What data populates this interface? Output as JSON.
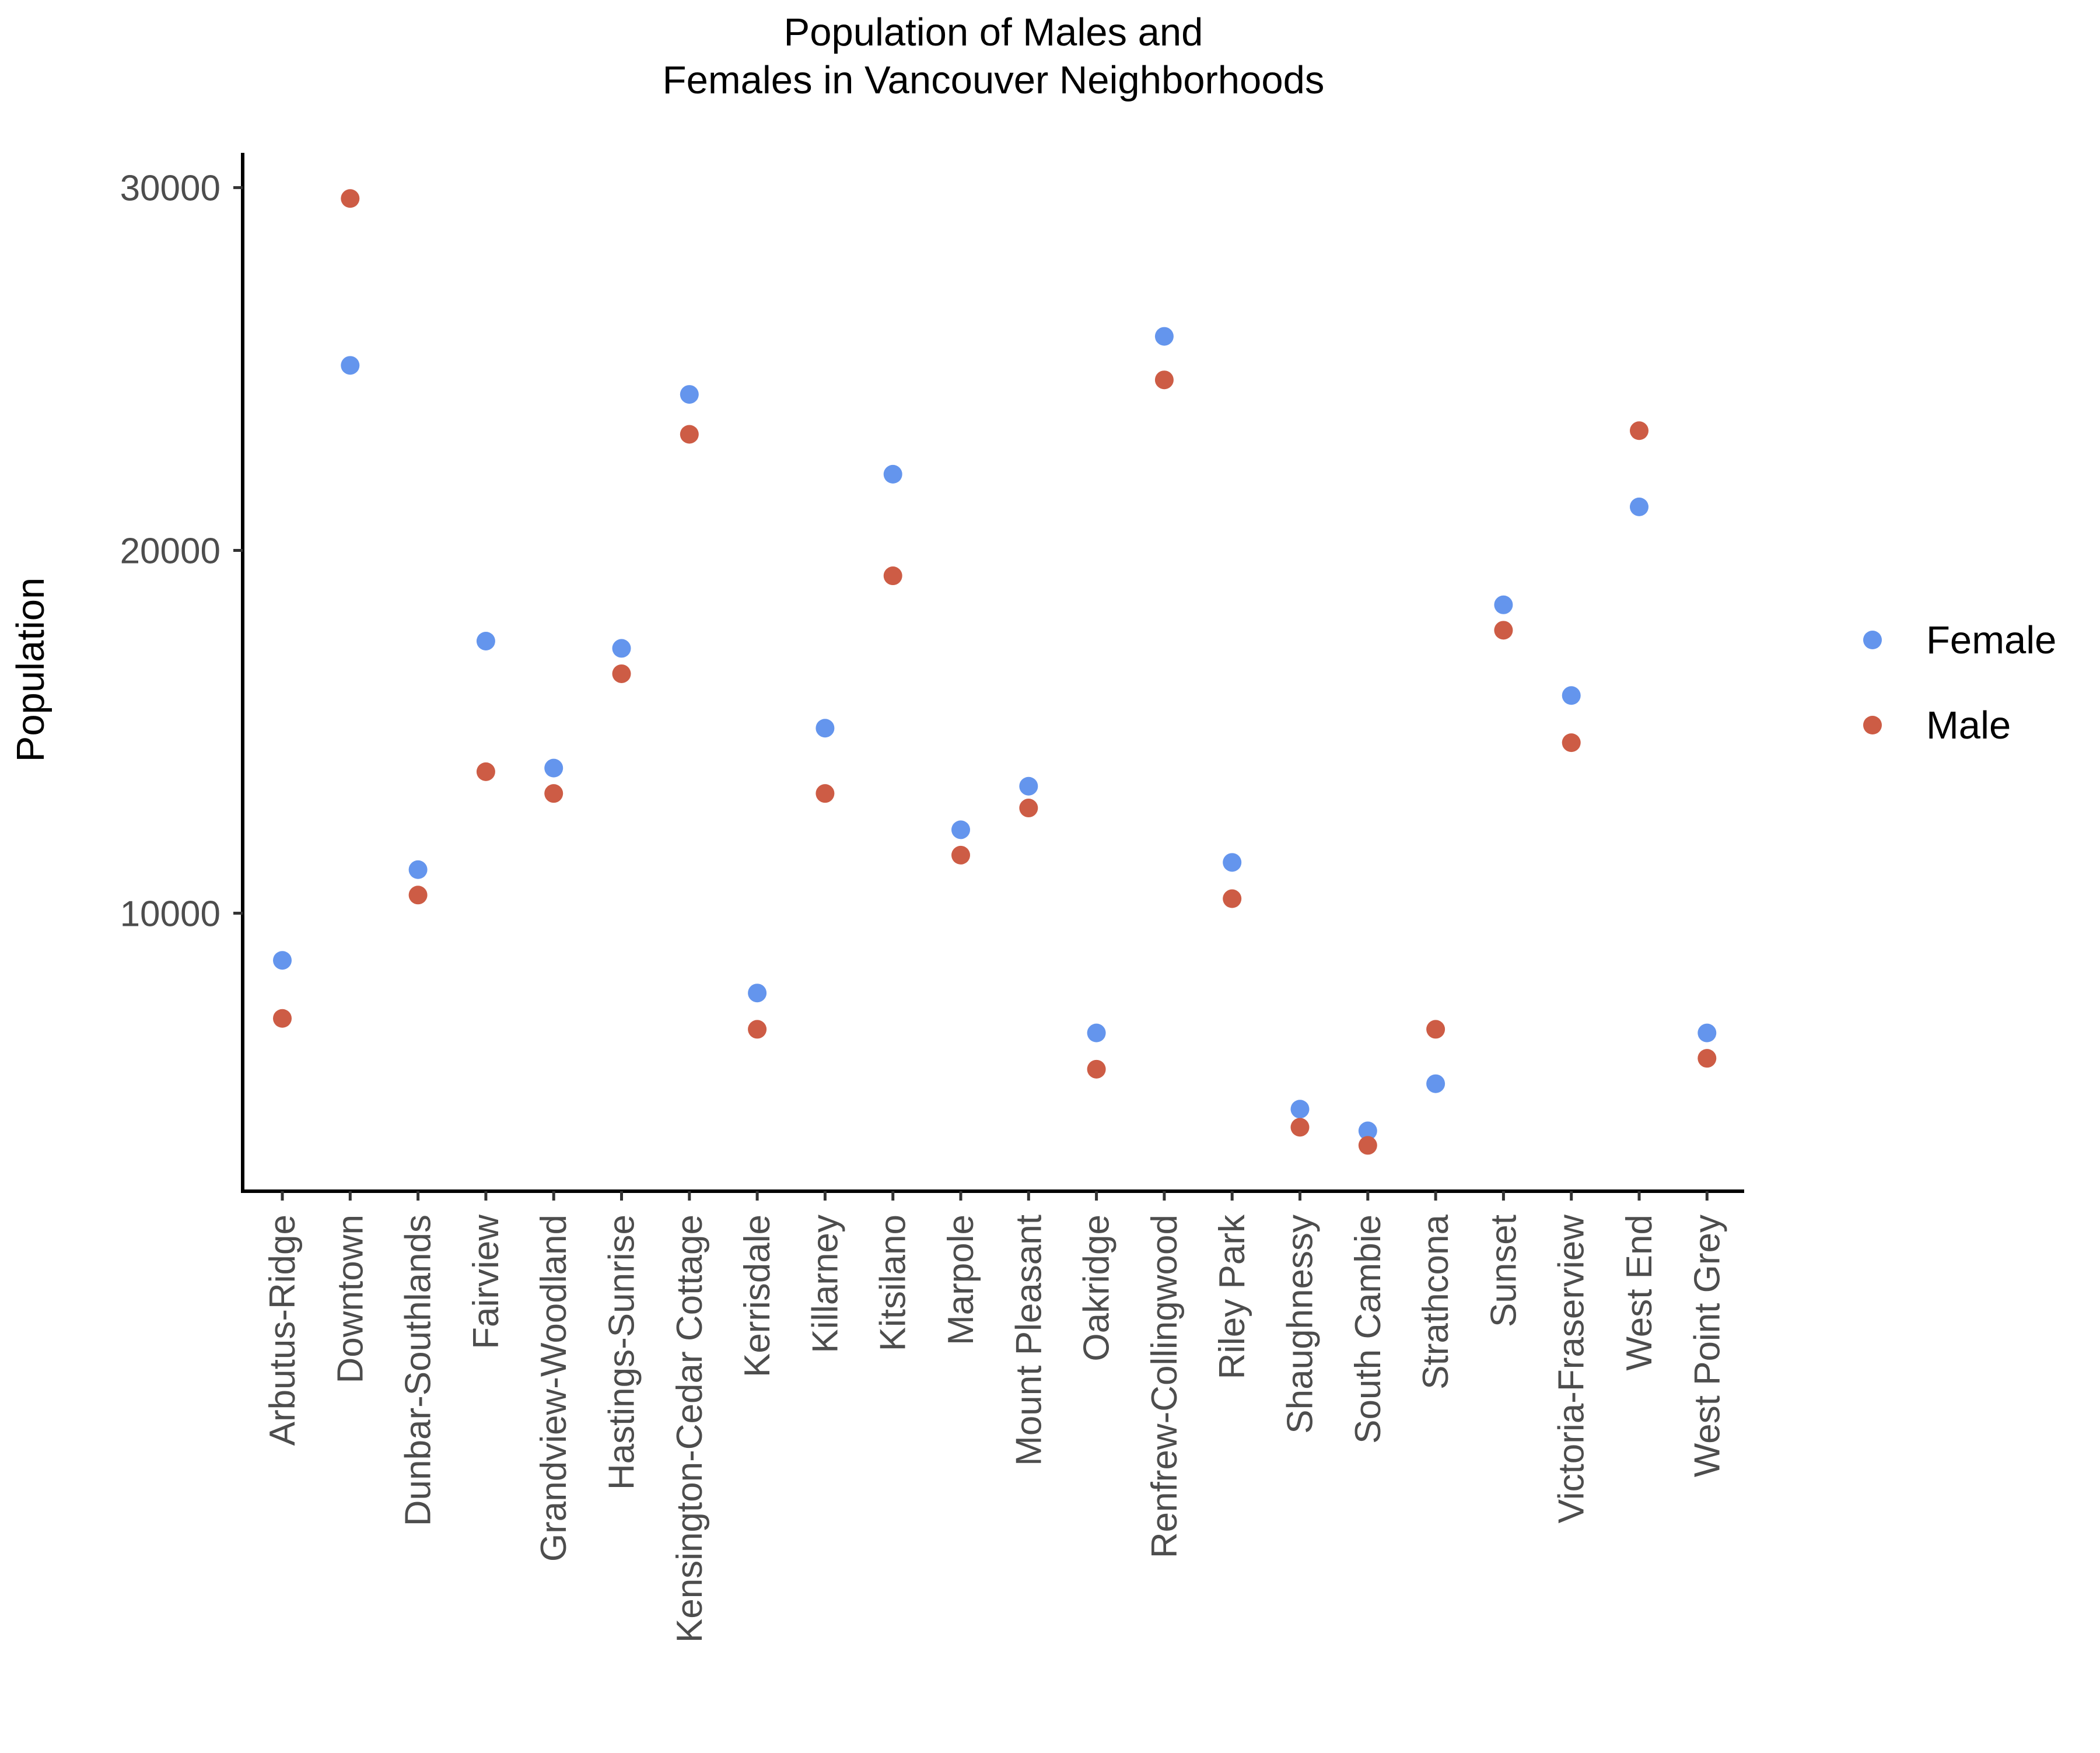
{
  "chart_data": {
    "type": "scatter",
    "title_lines": [
      "Population of Males and",
      "Females in Vancouver Neighborhoods"
    ],
    "xlabel": "",
    "ylabel": "Population",
    "y_ticks": [
      10000,
      20000,
      30000
    ],
    "y_tick_labels": [
      "10000",
      "20000",
      "30000"
    ],
    "ylim": [
      2500,
      31000
    ],
    "grid": false,
    "legend_position": "right",
    "categories": [
      "Arbutus-Ridge",
      "Downtown",
      "Dunbar-Southlands",
      "Fairview",
      "Grandview-Woodland",
      "Hastings-Sunrise",
      "Kensington-Cedar Cottage",
      "Kerrisdale",
      "Killarney",
      "Kitsilano",
      "Marpole",
      "Mount Pleasant",
      "Oakridge",
      "Renfrew-Collingwood",
      "Riley Park",
      "Shaughnessy",
      "South Cambie",
      "Strathcona",
      "Sunset",
      "Victoria-Fraserview",
      "West End",
      "West Point Grey"
    ],
    "series": [
      {
        "name": "Female",
        "color": "#6495ED",
        "values": [
          8700,
          25100,
          11200,
          17500,
          14000,
          17300,
          24300,
          7800,
          15100,
          22100,
          12300,
          13500,
          6700,
          25900,
          11400,
          4600,
          4000,
          5300,
          18500,
          16000,
          21200,
          6700
        ]
      },
      {
        "name": "Male",
        "color": "#CD5C45",
        "values": [
          7100,
          29700,
          10500,
          13900,
          13300,
          16600,
          23200,
          6800,
          13300,
          19300,
          11600,
          12900,
          5700,
          24700,
          10400,
          4100,
          3600,
          6800,
          17800,
          14700,
          23300,
          6000
        ]
      }
    ]
  }
}
